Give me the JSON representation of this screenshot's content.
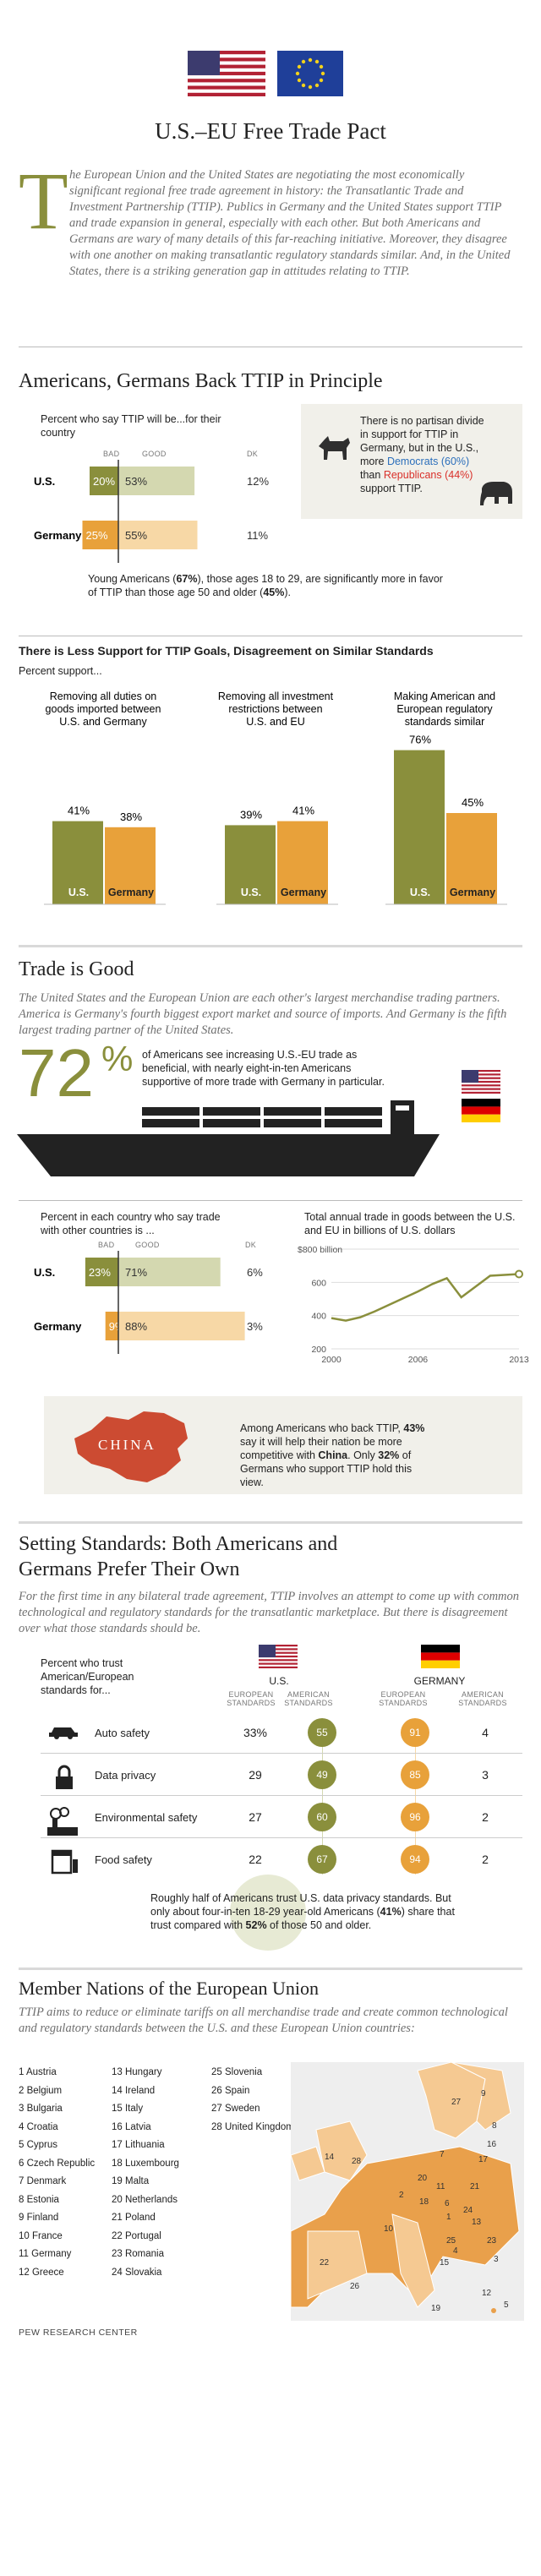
{
  "header": {
    "title": "U.S.–EU Free Trade Pact",
    "intro_dropcap": "T",
    "intro": "he European Union and the United States are negotiating the most economically significant regional free trade agreement in history: the Transatlantic Trade and Investment Partnership (TTIP). Publics in Germany and the United States support TTIP and trade expansion in general, especially with each other. But both Americans and Germans are wary of many details of this far-reaching initiative. Moreover, they disagree with one another on making transatlantic regulatory standards similar. And, in the United States, there is a striking generation gap in attitudes relating to TTIP."
  },
  "colors": {
    "olive": "#8a8f3c",
    "olive_light": "#d4d8b0",
    "orange": "#e8a13a",
    "orange_light": "#f7d8a6",
    "beige": "#f1f0ea",
    "ship": "#222222"
  },
  "section1": {
    "title": "Americans, Germans Back TTIP in Principle",
    "chart_title": "Percent who say TTIP will be...for their country",
    "col_bad": "BAD",
    "col_good": "GOOD",
    "col_dk": "DK",
    "callout_1": "There is no partisan divide in support for TTIP in Germany, but in the U.S., more ",
    "callout_dem": "Democrats (60%)",
    "callout_2": " than ",
    "callout_rep": "Republicans (44%)",
    "callout_3": " support TTIP.",
    "young_1": "Young Americans (",
    "young_b1": "67%",
    "young_2": "), those ages 18 to 29, are significantly more in favor of TTIP than those age 50 and older (",
    "young_b2": "45%",
    "young_3": ")."
  },
  "section2": {
    "title": "There is Less Support for TTIP Goals, Disagreement on Similar Standards",
    "subtitle": "Percent support..."
  },
  "section3": {
    "title": "Trade is Good",
    "intro": "The United States and the European Union are each other's largest merchandise trading partners. America is Germany's fourth biggest export market and source of imports. And Germany is the fifth largest trading partner of the United States.",
    "big_number": "72",
    "big_pct": "%",
    "big_text_1": "of Americans see increasing U.S.-EU trade as beneficial, with nearly eight-in-ten Americans supportive of more trade with Germany in particular.",
    "chart_title": "Percent in each country who say trade with other countries is ...",
    "col_bad": "BAD",
    "col_good": "GOOD",
    "col_dk": "DK",
    "line_title": "Total annual trade in goods between the U.S. and EU in billions of U.S. dollars",
    "china_label": "CHINA",
    "china_1": "Among Americans who back TTIP, ",
    "china_b1": "43%",
    "china_2": " say it will help their nation be more competitive with ",
    "china_b2": "China",
    "china_3": ". Only ",
    "china_b3": "32%",
    "china_4": " of Germans who support TTIP hold this view."
  },
  "section4": {
    "title_1": "Setting Standards: Both Americans and",
    "title_2": "Germans Prefer Their Own",
    "intro": "For the first time in any bilateral trade agreement, TTIP involves an attempt to come up with common technological and regulatory standards for the transatlantic marketplace. But there is disagreement over what those standards should be.",
    "lead": "Percent who trust American/European standards for...",
    "us_label": "U.S.",
    "de_label": "GERMANY",
    "col_euro": "EUROPEAN STANDARDS",
    "col_amer": "AMERICAN STANDARDS",
    "rows": [
      {
        "label": "Auto safety",
        "us_eu": "33%",
        "us_am": "55",
        "de_eu": "91",
        "de_am": "4",
        "icon": "car-icon"
      },
      {
        "label": "Data privacy",
        "us_eu": "29",
        "us_am": "49",
        "de_eu": "85",
        "de_am": "3",
        "icon": "lock-icon"
      },
      {
        "label": "Environmental safety",
        "us_eu": "27",
        "us_am": "60",
        "de_eu": "96",
        "de_am": "2",
        "icon": "factory-icon"
      },
      {
        "label": "Food safety",
        "us_eu": "22",
        "us_am": "67",
        "de_eu": "94",
        "de_am": "2",
        "icon": "food-icon"
      }
    ],
    "note_1": "Roughly half of Americans trust U.S. data privacy standards. But only about four-in-ten 18-29 year-old Americans (",
    "note_b1": "41%",
    "note_2": ") share that trust compared with ",
    "note_b2": "52%",
    "note_3": " of those 50 and older."
  },
  "section5": {
    "title": "Member Nations of the European Union",
    "intro": "TTIP aims to reduce or eliminate tariffs on all merchandise trade and create common technological and regulatory standards between the U.S. and these European Union countries:",
    "members": [
      "1  Austria",
      "2  Belgium",
      "3  Bulgaria",
      "4  Croatia",
      "5  Cyprus",
      "6  Czech Republic",
      "7  Denmark",
      "8  Estonia",
      "9  Finland",
      "10  France",
      "11  Germany",
      "12  Greece",
      "13  Hungary",
      "14  Ireland",
      "15  Italy",
      "16  Latvia",
      "17  Lithuania",
      "18  Luxembourg",
      "19  Malta",
      "20  Netherlands",
      "21  Poland",
      "22  Portugal",
      "23  Romania",
      "24  Slovakia",
      "25  Slovenia",
      "26  Spain",
      "27  Sweden",
      "28  United Kingdom"
    ],
    "map_numbers": [
      "27",
      "9",
      "8",
      "14",
      "28",
      "16",
      "17",
      "20",
      "2",
      "7",
      "21",
      "18",
      "11",
      "6",
      "24",
      "1",
      "13",
      "10",
      "25",
      "23",
      "4",
      "3",
      "15",
      "22",
      "26",
      "12",
      "19",
      "5"
    ]
  },
  "footer": {
    "source": "PEW RESEARCH CENTER"
  },
  "chart_data": [
    {
      "type": "bar",
      "title": "Percent who say TTIP will be...for their country",
      "categories": [
        "U.S.",
        "Germany"
      ],
      "series": [
        {
          "name": "BAD",
          "values": [
            20,
            25
          ]
        },
        {
          "name": "GOOD",
          "values": [
            53,
            55
          ]
        },
        {
          "name": "DK",
          "values": [
            12,
            11
          ]
        }
      ]
    },
    {
      "type": "bar",
      "title": "There is Less Support for TTIP Goals, Disagreement on Similar Standards",
      "categories": [
        "Removing all duties on goods imported between U.S. and Germany",
        "Removing all investment restrictions between U.S. and EU",
        "Making American and European regulatory standards similar"
      ],
      "series": [
        {
          "name": "U.S.",
          "values": [
            41,
            39,
            76
          ]
        },
        {
          "name": "Germany",
          "values": [
            38,
            41,
            45
          ]
        }
      ]
    },
    {
      "type": "bar",
      "title": "Percent in each country who say trade with other countries is ...",
      "categories": [
        "U.S.",
        "Germany"
      ],
      "series": [
        {
          "name": "BAD",
          "values": [
            23,
            9
          ]
        },
        {
          "name": "GOOD",
          "values": [
            71,
            88
          ]
        },
        {
          "name": "DK",
          "values": [
            6,
            3
          ]
        }
      ]
    },
    {
      "type": "line",
      "title": "Total annual trade in goods between the U.S. and EU in billions of U.S. dollars",
      "x": [
        2000,
        2001,
        2002,
        2003,
        2004,
        2005,
        2006,
        2007,
        2008,
        2009,
        2010,
        2011,
        2012,
        2013
      ],
      "series": [
        {
          "values": [
            385,
            370,
            390,
            425,
            465,
            505,
            545,
            590,
            625,
            510,
            575,
            640,
            645,
            650
          ]
        }
      ],
      "yticks": [
        "$800 billion",
        "600",
        "400",
        "200"
      ],
      "xticks": [
        "2000",
        "2006",
        "2013"
      ],
      "ylim": [
        200,
        800
      ]
    }
  ]
}
